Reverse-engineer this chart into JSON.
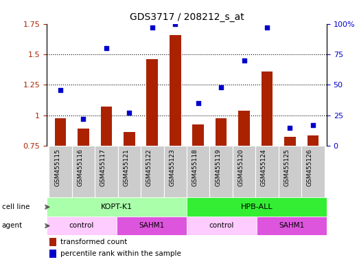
{
  "title": "GDS3717 / 208212_s_at",
  "samples": [
    "GSM455115",
    "GSM455116",
    "GSM455117",
    "GSM455121",
    "GSM455122",
    "GSM455123",
    "GSM455118",
    "GSM455119",
    "GSM455120",
    "GSM455124",
    "GSM455125",
    "GSM455126"
  ],
  "bar_values": [
    0.975,
    0.895,
    1.07,
    0.865,
    1.46,
    1.655,
    0.925,
    0.975,
    1.04,
    1.36,
    0.825,
    0.835
  ],
  "dot_values": [
    46,
    22,
    80,
    27,
    97,
    100,
    35,
    48,
    70,
    97,
    15,
    17
  ],
  "bar_color": "#aa2200",
  "dot_color": "#0000cc",
  "ylim_left": [
    0.75,
    1.75
  ],
  "ylim_right": [
    0,
    100
  ],
  "yticks_left": [
    0.75,
    1.0,
    1.25,
    1.5,
    1.75
  ],
  "yticks_right": [
    0,
    25,
    50,
    75,
    100
  ],
  "ytick_labels_left": [
    "0.75",
    "1",
    "1.25",
    "1.5",
    "1.75"
  ],
  "ytick_labels_right": [
    "0",
    "25",
    "50",
    "75",
    "100%"
  ],
  "cell_line_groups": [
    {
      "label": "KOPT-K1",
      "start": 0,
      "end": 6,
      "color": "#aaffaa"
    },
    {
      "label": "HPB-ALL",
      "start": 6,
      "end": 12,
      "color": "#33ee33"
    }
  ],
  "agent_groups": [
    {
      "label": "control",
      "start": 0,
      "end": 3,
      "color": "#ffccff"
    },
    {
      "label": "SAHM1",
      "start": 3,
      "end": 6,
      "color": "#dd55dd"
    },
    {
      "label": "control",
      "start": 6,
      "end": 9,
      "color": "#ffccff"
    },
    {
      "label": "SAHM1",
      "start": 9,
      "end": 12,
      "color": "#dd55dd"
    }
  ],
  "sample_bg_color": "#cccccc",
  "legend_bar_label": "transformed count",
  "legend_dot_label": "percentile rank within the sample",
  "row_label_cell_line": "cell line",
  "row_label_agent": "agent"
}
